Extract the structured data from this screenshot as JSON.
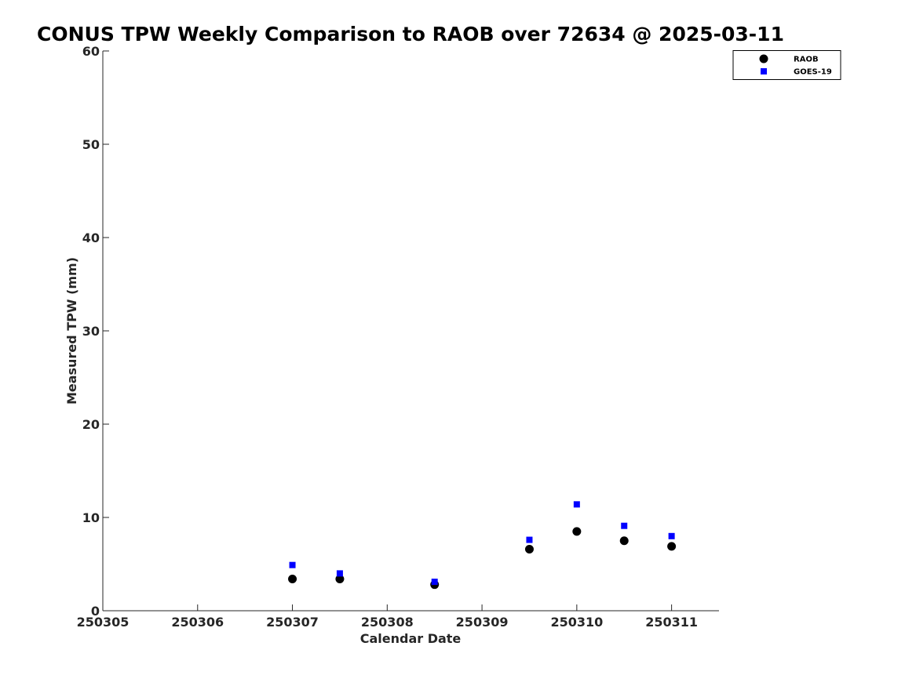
{
  "chart_data": {
    "type": "scatter",
    "title": "CONUS TPW Weekly Comparison to RAOB over 72634 @ 2025-03-11",
    "xlabel": "Calendar Date",
    "ylabel": "Measured TPW (mm)",
    "xlim": [
      250305,
      250311.5
    ],
    "ylim": [
      0,
      60
    ],
    "x_ticks": [
      250305,
      250306,
      250307,
      250308,
      250309,
      250310,
      250311
    ],
    "x_tick_labels": [
      "250305",
      "250306",
      "250307",
      "250308",
      "250309",
      "250310",
      "250311"
    ],
    "y_ticks": [
      0,
      10,
      20,
      30,
      40,
      50,
      60
    ],
    "y_tick_labels": [
      "0",
      "10",
      "20",
      "30",
      "40",
      "50",
      "60"
    ],
    "grid": false,
    "legend_position": "top-right outside",
    "series": [
      {
        "name": "RAOB",
        "marker": "circle",
        "color": "#000000",
        "x": [
          250307,
          250307.5,
          250308.5,
          250309.5,
          250310,
          250310.5,
          250311
        ],
        "y": [
          3.4,
          3.4,
          2.8,
          6.6,
          8.5,
          7.5,
          6.9
        ]
      },
      {
        "name": "GOES-19",
        "marker": "square",
        "color": "#0000ff",
        "x": [
          250307,
          250307.5,
          250308.5,
          250309.5,
          250310,
          250310.5,
          250311
        ],
        "y": [
          4.9,
          4.0,
          3.1,
          7.6,
          11.4,
          9.1,
          8.0
        ]
      }
    ]
  }
}
